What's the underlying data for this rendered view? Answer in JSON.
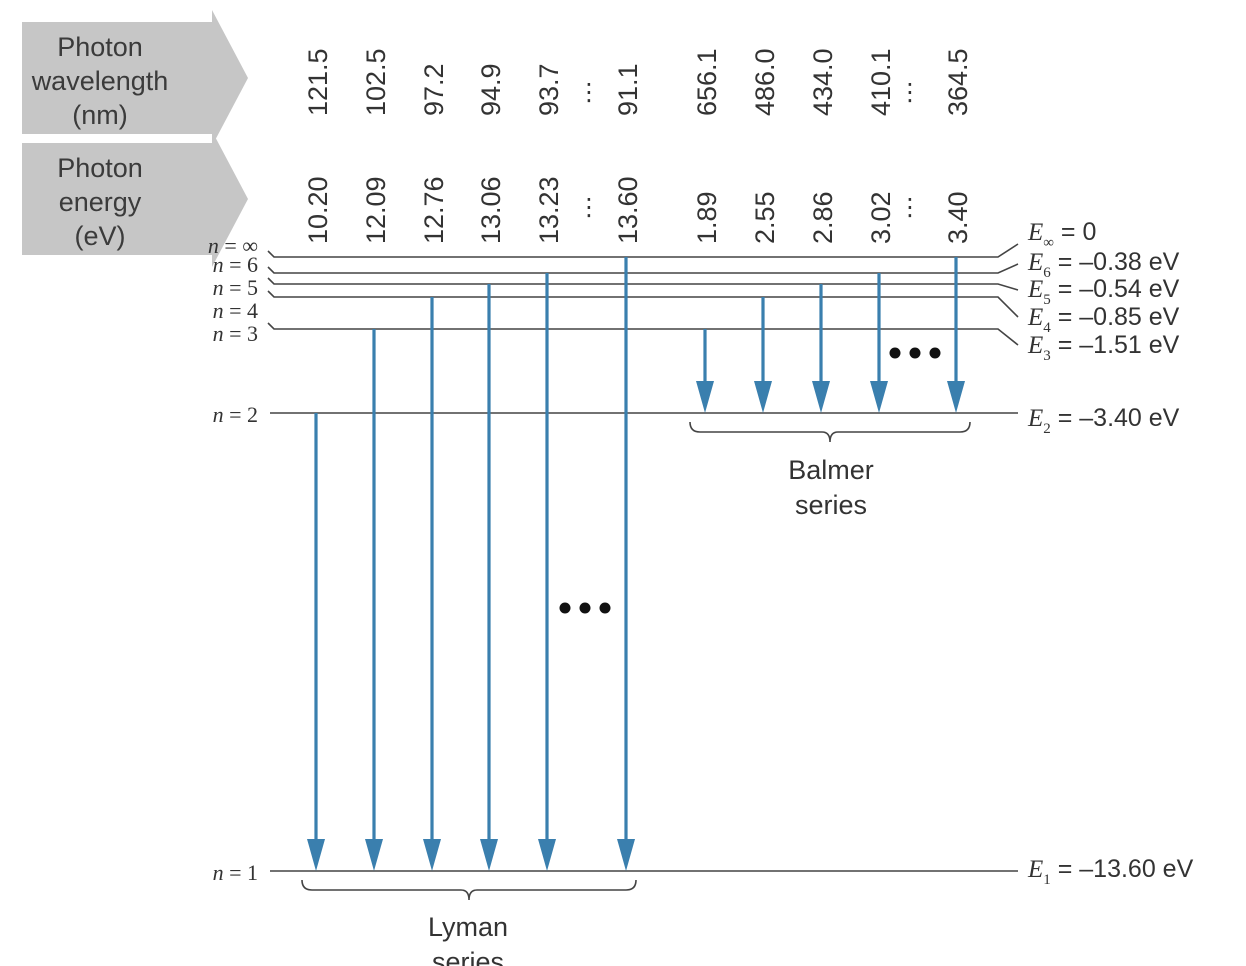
{
  "header_boxes": {
    "wavelength": [
      "Photon",
      "wavelength",
      "(nm)"
    ],
    "energy": [
      "Photon",
      "energy",
      "(eV)"
    ]
  },
  "levels": [
    {
      "n": "∞",
      "energy_symbol": "E",
      "subscript": "∞",
      "energy_value": "0"
    },
    {
      "n": "6",
      "energy_symbol": "E",
      "subscript": "6",
      "energy_value": "–0.38 eV"
    },
    {
      "n": "5",
      "energy_symbol": "E",
      "subscript": "5",
      "energy_value": "–0.54 eV"
    },
    {
      "n": "4",
      "energy_symbol": "E",
      "subscript": "4",
      "energy_value": "–0.85 eV"
    },
    {
      "n": "3",
      "energy_symbol": "E",
      "subscript": "3",
      "energy_value": "–1.51 eV"
    },
    {
      "n": "2",
      "energy_symbol": "E",
      "subscript": "2",
      "energy_value": "–3.40 eV"
    },
    {
      "n": "1",
      "energy_symbol": "E",
      "subscript": "1",
      "energy_value": "–13.60 eV"
    }
  ],
  "lyman": {
    "label": [
      "Lyman",
      "series"
    ],
    "transitions": [
      {
        "from": "2",
        "to": "1",
        "wavelength": "121.5",
        "energy": "10.20"
      },
      {
        "from": "3",
        "to": "1",
        "wavelength": "102.5",
        "energy": "12.09"
      },
      {
        "from": "4",
        "to": "1",
        "wavelength": "97.2",
        "energy": "12.76"
      },
      {
        "from": "5",
        "to": "1",
        "wavelength": "94.9",
        "energy": "13.06"
      },
      {
        "from": "6",
        "to": "1",
        "wavelength": "93.7",
        "energy": "13.23"
      },
      {
        "from": "∞",
        "to": "1",
        "wavelength": "91.1",
        "energy": "13.60"
      }
    ]
  },
  "balmer": {
    "label": [
      "Balmer",
      "series"
    ],
    "transitions": [
      {
        "from": "3",
        "to": "2",
        "wavelength": "656.1",
        "energy": "1.89"
      },
      {
        "from": "4",
        "to": "2",
        "wavelength": "486.0",
        "energy": "2.55"
      },
      {
        "from": "5",
        "to": "2",
        "wavelength": "434.0",
        "energy": "2.86"
      },
      {
        "from": "6",
        "to": "2",
        "wavelength": "410.1",
        "energy": "3.02"
      },
      {
        "from": "∞",
        "to": "2",
        "wavelength": "364.5",
        "energy": "3.40"
      }
    ]
  },
  "ellipsis": "⋮",
  "n_prefix": "n = ",
  "eq": " = ",
  "colors": {
    "arrow": "#3a7fae",
    "box": "#c6c6c6",
    "box_text": "#3b3b3b",
    "line": "#444444",
    "text": "#333333",
    "dots": "#111111"
  }
}
